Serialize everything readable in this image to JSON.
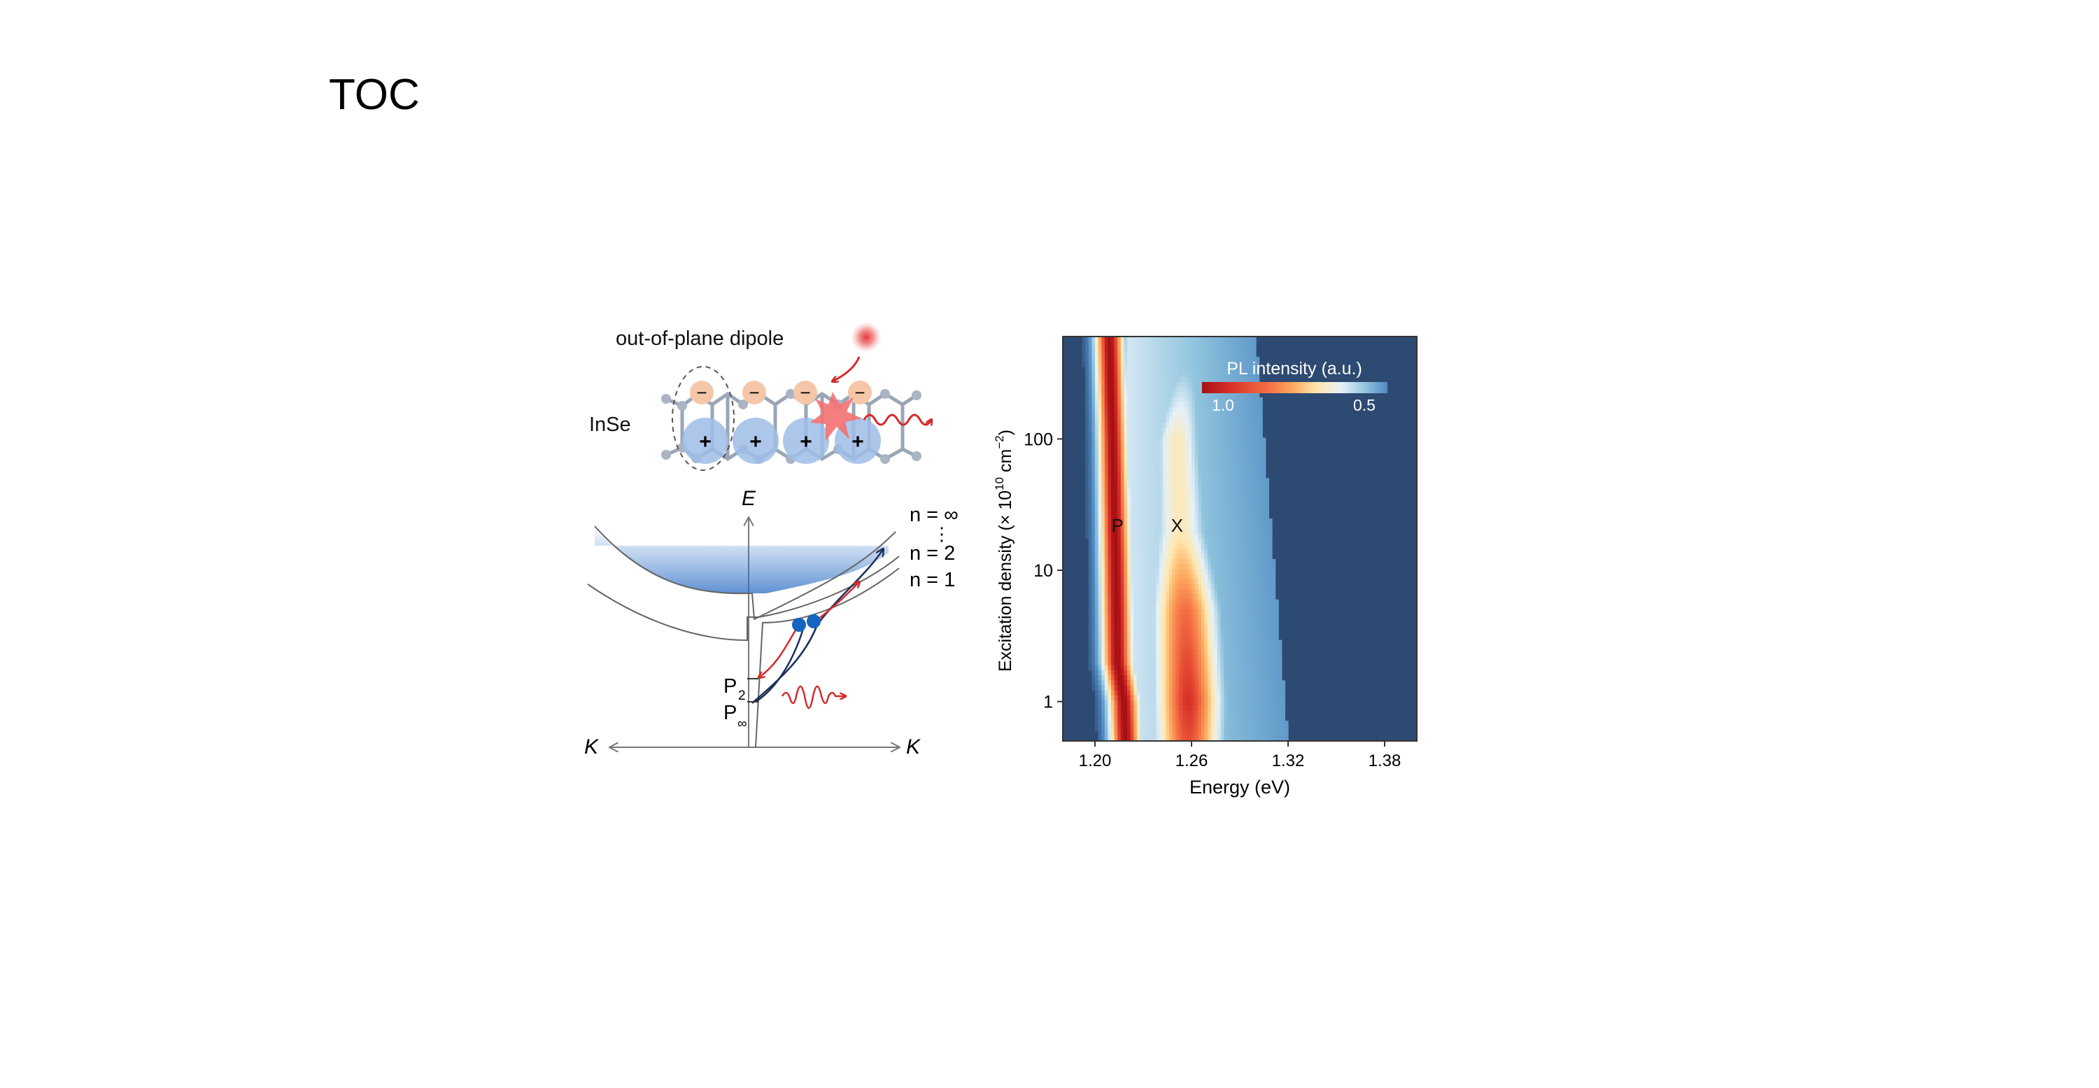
{
  "slide": {
    "title": "TOC"
  },
  "schematic": {
    "dipole_label": "out-of-plane dipole",
    "material_label": "InSe",
    "minus_sign": "−",
    "plus_sign": "+",
    "axis_e": "E",
    "axis_k_left": "K",
    "axis_k_right": "K",
    "levels": [
      "n = ∞",
      "⋮",
      "n = 2",
      "n = 1"
    ],
    "p2_label": "P",
    "p2_sub": "2",
    "pinf_label": "P",
    "pinf_sub": "∞",
    "colors": {
      "dipole_negative": "#f5c7a8",
      "dipole_positive": "#9fbde8",
      "photon": "#d42a2a",
      "carrier": "#1565c0",
      "band_fill": "#3f7fd0"
    }
  },
  "chart_data": {
    "type": "heatmap",
    "title": "",
    "xlabel": "Energy (eV)",
    "ylabel_main": "Excitation density  (× 10",
    "ylabel_exp": "10",
    "ylabel_unit": " cm",
    "ylabel_unit_exp": "−2",
    "ylabel_close": ")",
    "xlim": [
      1.18,
      1.4
    ],
    "ylim_log10": [
      -0.3,
      2.78
    ],
    "y_scale": "log",
    "xticks": [
      1.2,
      1.26,
      1.32,
      1.38
    ],
    "xtick_labels": [
      "1.20",
      "1.26",
      "1.32",
      "1.38"
    ],
    "yticks": [
      1,
      10,
      100
    ],
    "ytick_labels": [
      "1",
      "10",
      "100"
    ],
    "annotations": [
      {
        "text": "P",
        "x": 1.214,
        "y": 22
      },
      {
        "text": "X",
        "x": 1.251,
        "y": 22
      }
    ],
    "colorbar": {
      "label": "PL intensity (a.u.)",
      "max_label": "1.0",
      "min_label": "0.5",
      "position": "top-right"
    },
    "peaks": [
      {
        "name": "P",
        "rows": [
          {
            "density": 0.5,
            "center": 1.219,
            "width": 0.0075,
            "amp": 1.0
          },
          {
            "density": 1,
            "center": 1.218,
            "width": 0.0075,
            "amp": 1.0
          },
          {
            "density": 2,
            "center": 1.214,
            "width": 0.0075,
            "amp": 1.0
          },
          {
            "density": 10,
            "center": 1.213,
            "width": 0.0075,
            "amp": 1.0
          },
          {
            "density": 100,
            "center": 1.211,
            "width": 0.007,
            "amp": 1.0
          },
          {
            "density": 600,
            "center": 1.209,
            "width": 0.007,
            "amp": 1.0
          }
        ]
      },
      {
        "name": "X",
        "rows": [
          {
            "density": 0.5,
            "center": 1.258,
            "width": 0.016,
            "amp": 0.85
          },
          {
            "density": 1,
            "center": 1.258,
            "width": 0.016,
            "amp": 0.9
          },
          {
            "density": 5,
            "center": 1.256,
            "width": 0.016,
            "amp": 0.8
          },
          {
            "density": 20,
            "center": 1.253,
            "width": 0.014,
            "amp": 0.55
          },
          {
            "density": 100,
            "center": 1.251,
            "width": 0.012,
            "amp": 0.55
          },
          {
            "density": 300,
            "center": 1.255,
            "width": 0.012,
            "amp": 0.35
          },
          {
            "density": 600,
            "center": 1.258,
            "width": 0.012,
            "amp": 0.25
          }
        ]
      }
    ],
    "tail_edge_ev": {
      "low_density": 1.32,
      "high_density": 1.3
    }
  }
}
